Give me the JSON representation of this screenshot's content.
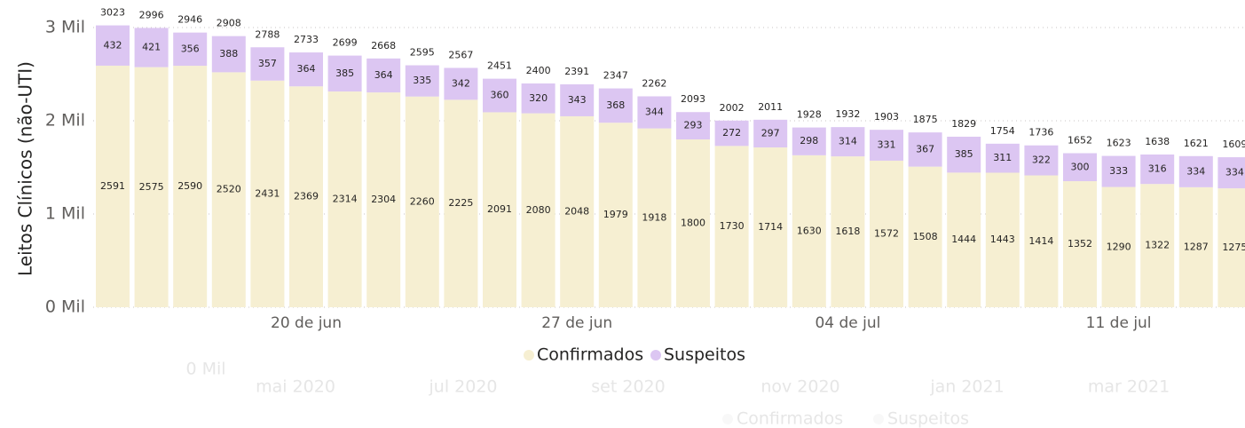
{
  "chart_data": {
    "type": "stacked-bar",
    "y_label": "Leitos Clínicos (não-UTI)",
    "categories": [
      null,
      null,
      null,
      null,
      null,
      "20 de jun",
      null,
      null,
      null,
      null,
      null,
      null,
      "27 de jun",
      null,
      null,
      null,
      null,
      null,
      null,
      "04 de jul",
      null,
      null,
      null,
      null,
      null,
      null,
      "11 de jul",
      null,
      null,
      null
    ],
    "series": [
      {
        "name": "Confirmados",
        "color": "#f6efd2",
        "values": [
          2591,
          2575,
          2590,
          2520,
          2431,
          2369,
          2314,
          2304,
          2260,
          2225,
          2091,
          2080,
          2048,
          1979,
          1918,
          1800,
          1730,
          1714,
          1630,
          1618,
          1572,
          1508,
          1444,
          1443,
          1414,
          1352,
          1290,
          1322,
          1287,
          1275
        ]
      },
      {
        "name": "Suspeitos",
        "color": "#dcc6f2",
        "values": [
          432,
          421,
          356,
          388,
          357,
          364,
          385,
          364,
          335,
          342,
          360,
          320,
          343,
          368,
          344,
          293,
          272,
          297,
          298,
          314,
          331,
          367,
          385,
          311,
          322,
          300,
          333,
          316,
          334,
          334
        ]
      }
    ],
    "totals": [
      3023,
      2996,
      2946,
      2908,
      2788,
      2733,
      2699,
      2668,
      2595,
      2567,
      2451,
      2400,
      2391,
      2347,
      2262,
      2093,
      2002,
      2011,
      1928,
      1932,
      1903,
      1875,
      1829,
      1754,
      1736,
      1652,
      1623,
      1638,
      1621,
      1609
    ],
    "ylim": [
      0,
      3000
    ],
    "yticks": [
      {
        "value": 0,
        "label": "0 Mil"
      },
      {
        "value": 1000,
        "label": "1 Mil"
      },
      {
        "value": 2000,
        "label": "2 Mil"
      },
      {
        "value": 3000,
        "label": "3 Mil"
      }
    ],
    "grid": true,
    "legend": "bottom"
  },
  "background_chart": {
    "y_tick": "0 Mil",
    "x_labels": [
      "mai 2020",
      "jul 2020",
      "set 2020",
      "nov 2020",
      "jan 2021",
      "mar 2021"
    ],
    "legend": [
      "Confirmados",
      "Suspeitos"
    ]
  }
}
